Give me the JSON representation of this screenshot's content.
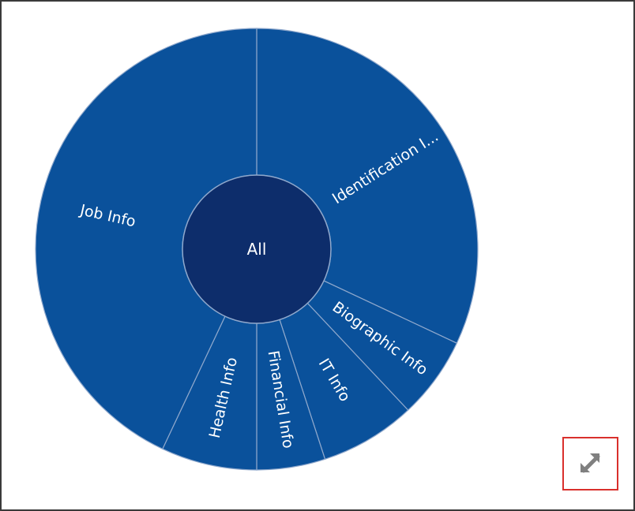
{
  "chart_data": {
    "type": "sunburst",
    "root": {
      "label": "All"
    },
    "segments": [
      {
        "label": "Identification I...",
        "value": 32
      },
      {
        "label": "Biographic Info",
        "value": 6
      },
      {
        "label": "IT Info",
        "value": 7
      },
      {
        "label": "Financial Info",
        "value": 5
      },
      {
        "label": "Health Info",
        "value": 7
      },
      {
        "label": "Job Info",
        "value": 43
      }
    ],
    "colors": {
      "segment_fill": "#0a519b",
      "center_fill": "#0d2d6b",
      "segment_stroke": "#8fa8cc"
    }
  },
  "controls": {
    "expand_icon": "expand-diagonal-icon"
  }
}
